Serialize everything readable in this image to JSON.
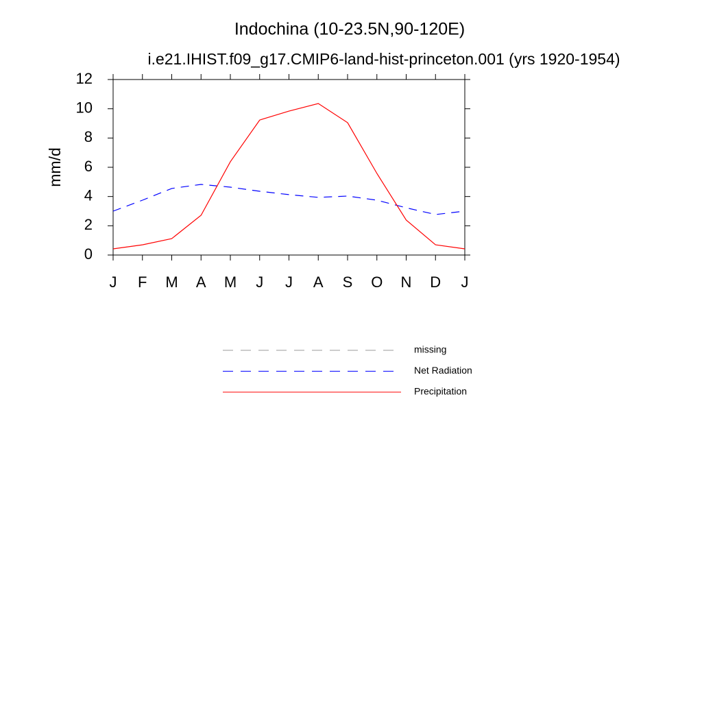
{
  "chart_data": {
    "type": "line",
    "title": "Indochina (10-23.5N,90-120E)",
    "subtitle": "i.e21.IHIST.f09_g17.CMIP6-land-hist-princeton.001 (yrs 1920-1954)",
    "y_label": "mm/d",
    "categories": [
      "J",
      "F",
      "M",
      "A",
      "M",
      "J",
      "J",
      "A",
      "S",
      "O",
      "N",
      "D",
      "J"
    ],
    "ylim": [
      0,
      12
    ],
    "yticks": [
      0,
      2,
      4,
      6,
      8,
      10,
      12
    ],
    "series": [
      {
        "name": "missing",
        "color": "#999999",
        "dashed": true,
        "values": [
          null,
          null,
          null,
          null,
          null,
          null,
          null,
          null,
          null,
          null,
          null,
          null,
          null
        ]
      },
      {
        "name": "Net Radiation",
        "color": "#0000ff",
        "dashed": true,
        "values": [
          3.0,
          3.75,
          4.55,
          4.83,
          4.64,
          4.36,
          4.13,
          3.94,
          4.03,
          3.75,
          3.23,
          2.77,
          3.0
        ]
      },
      {
        "name": "Precipitation",
        "color": "#ff0000",
        "dashed": false,
        "values": [
          0.42,
          0.7,
          1.12,
          2.72,
          6.38,
          9.23,
          9.84,
          10.36,
          9.05,
          5.58,
          2.39,
          0.7,
          0.42
        ]
      }
    ]
  }
}
